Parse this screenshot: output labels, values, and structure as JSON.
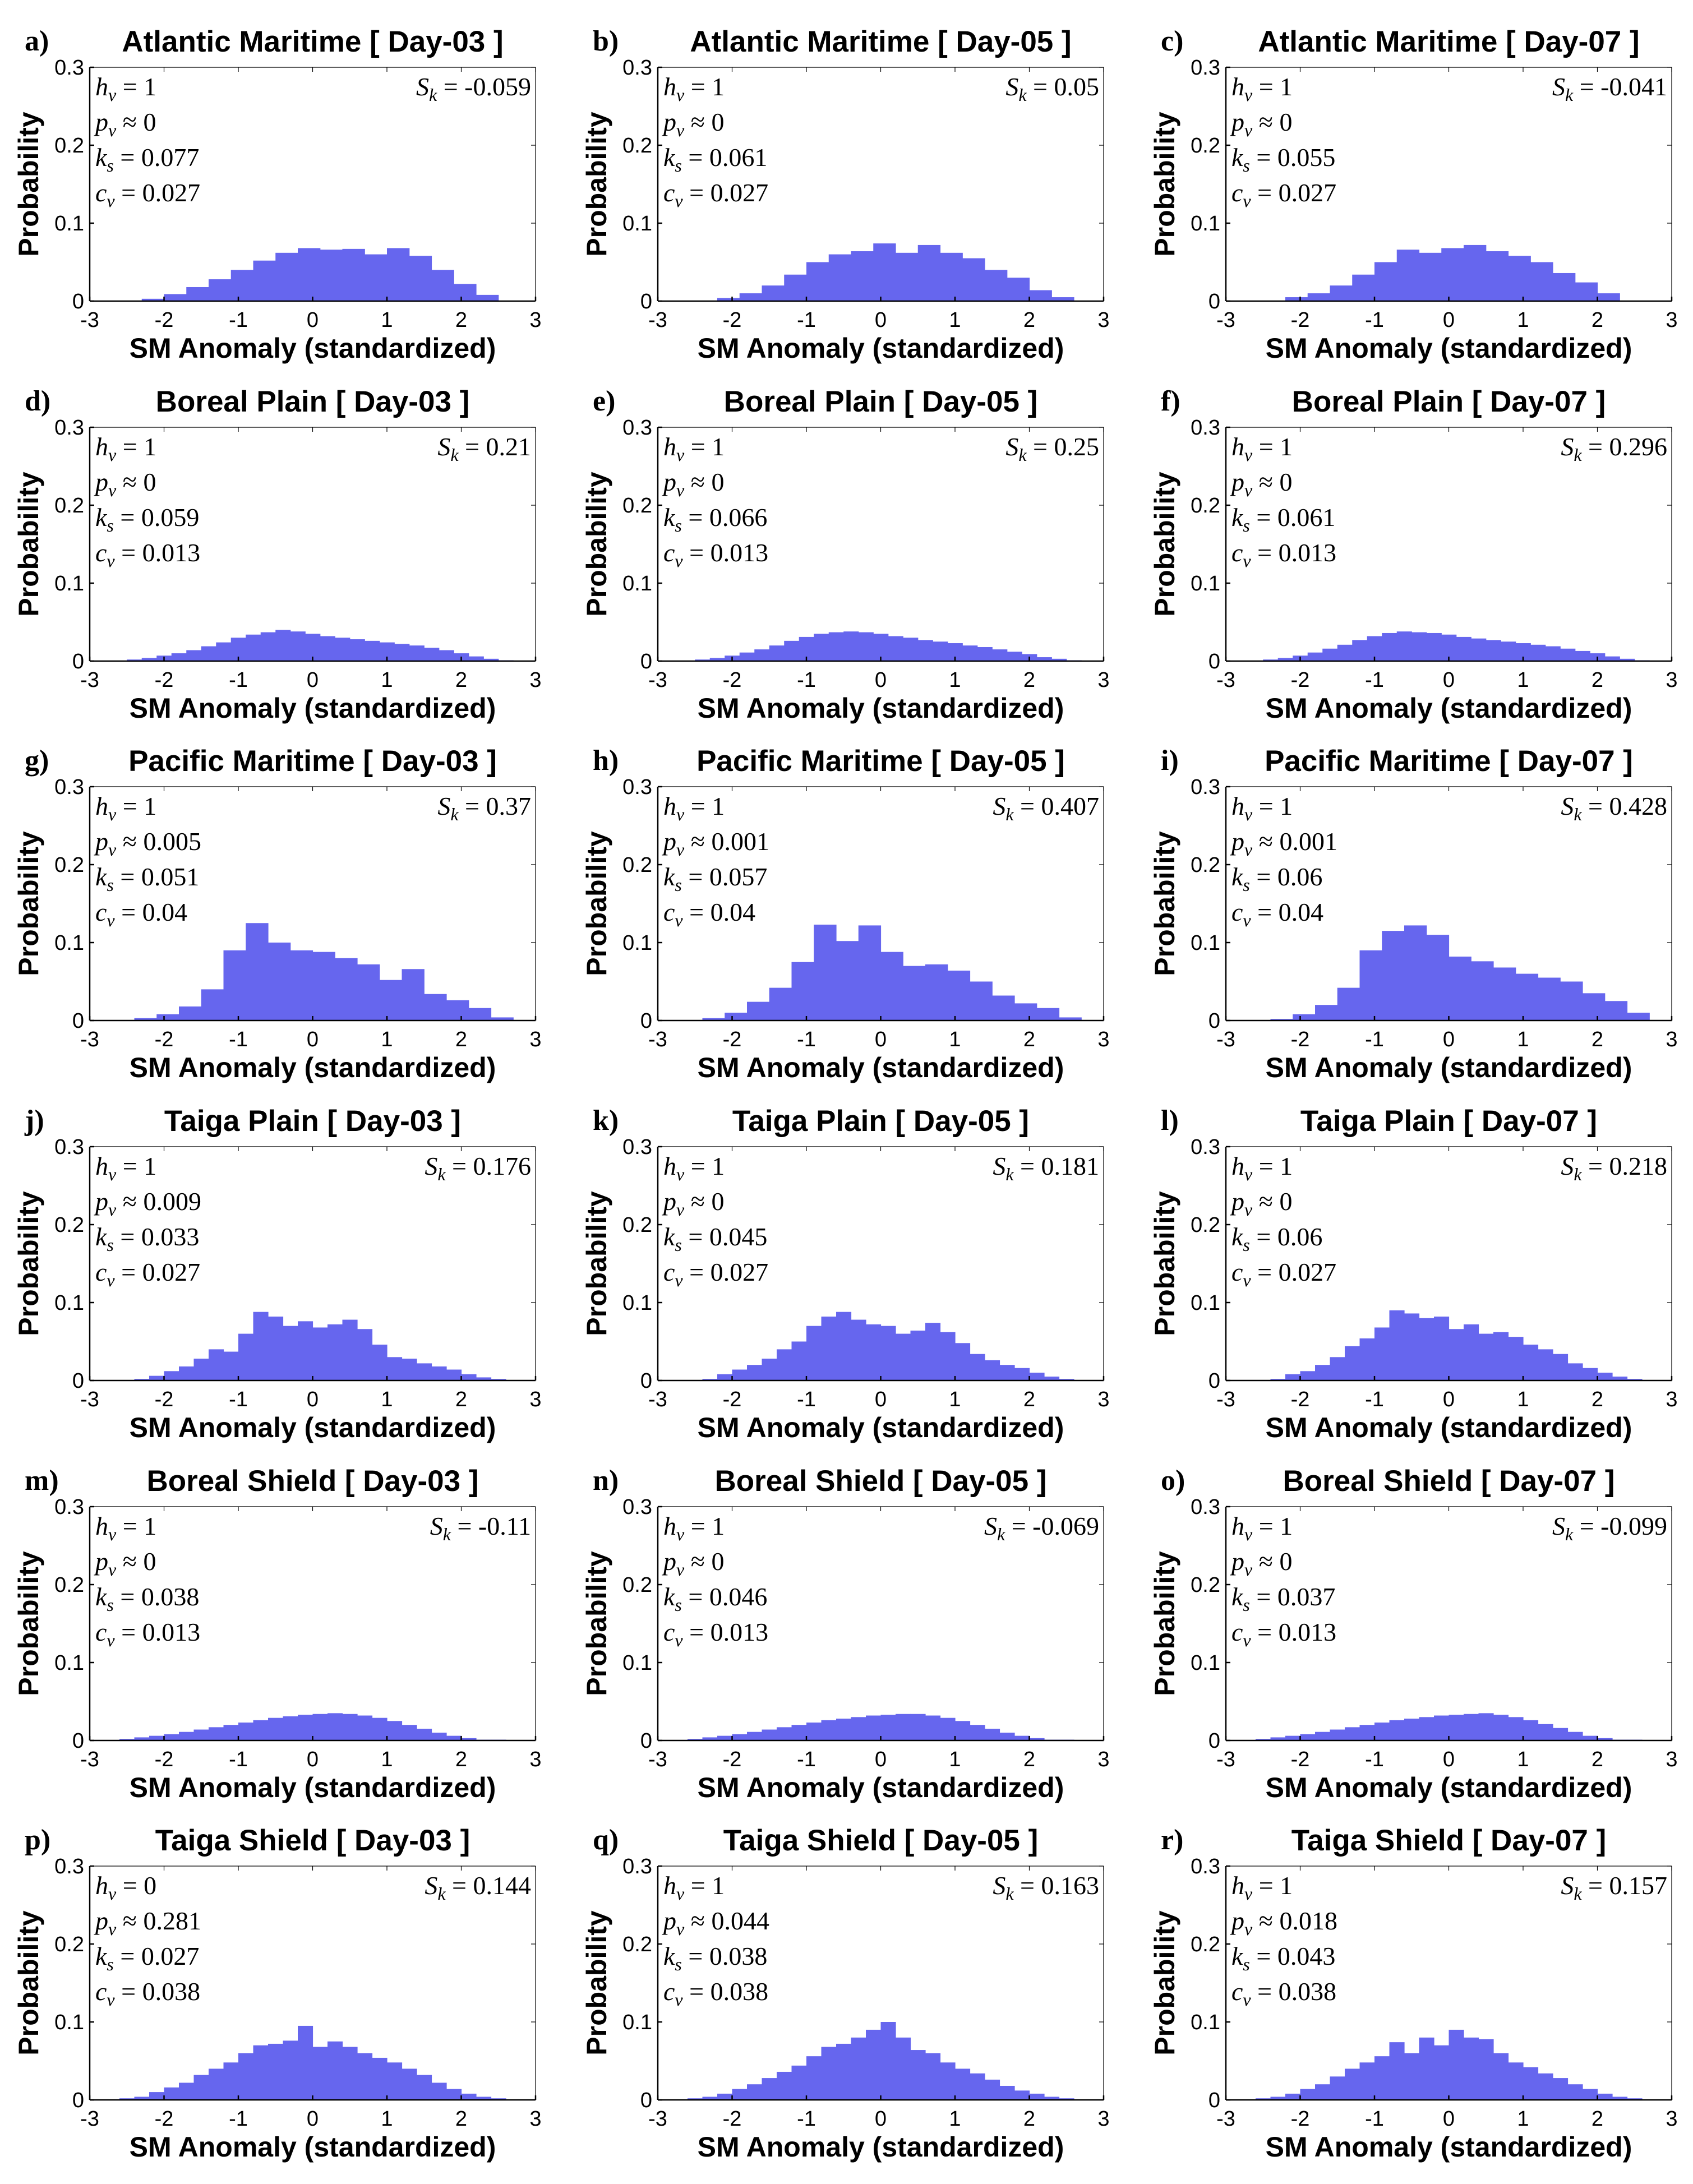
{
  "figure": {
    "xlabel": "SM Anomaly (standardized)",
    "ylabel": "Probability",
    "bar_color": "#6666ee",
    "xticks": [
      "-3",
      "-2",
      "-1",
      "0",
      "1",
      "2",
      "3"
    ],
    "yticks": [
      "0",
      "0.1",
      "0.2",
      "0.3"
    ],
    "stat_labels": {
      "h": "h",
      "h_sub": "v",
      "p": "p",
      "p_sub": "v",
      "k": "k",
      "k_sub": "s",
      "c": "c",
      "c_sub": "v",
      "s": "S",
      "s_sub": "k"
    }
  },
  "chart_data": [
    {
      "letter": "a)",
      "title": "Atlantic Maritime [ Day-03 ]",
      "type": "bar",
      "xlim": [
        -3,
        3
      ],
      "ylim": [
        0,
        0.3
      ],
      "stats": {
        "hv": "= 1",
        "pv": "≈ 0",
        "ks": "= 0.077",
        "cv": "= 0.027",
        "sk": "= -0.059"
      },
      "edges": [
        -2.3,
        -2.0,
        -1.7,
        -1.4,
        -1.1,
        -0.8,
        -0.5,
        -0.2,
        0.1,
        0.4,
        0.7,
        1.0,
        1.3,
        1.6,
        1.9,
        2.2,
        2.5
      ],
      "values": [
        0.003,
        0.009,
        0.018,
        0.028,
        0.04,
        0.052,
        0.062,
        0.068,
        0.066,
        0.067,
        0.06,
        0.068,
        0.058,
        0.04,
        0.022,
        0.008
      ]
    },
    {
      "letter": "b)",
      "title": "Atlantic Maritime [ Day-05 ]",
      "type": "bar",
      "xlim": [
        -3,
        3
      ],
      "ylim": [
        0,
        0.3
      ],
      "stats": {
        "hv": "= 1",
        "pv": "≈ 0",
        "ks": "= 0.061",
        "cv": "= 0.027",
        "sk": "= 0.05"
      },
      "edges": [
        -2.2,
        -1.9,
        -1.6,
        -1.3,
        -1.0,
        -0.7,
        -0.4,
        -0.1,
        0.2,
        0.5,
        0.8,
        1.1,
        1.4,
        1.7,
        2.0,
        2.3,
        2.6
      ],
      "values": [
        0.004,
        0.01,
        0.02,
        0.034,
        0.05,
        0.06,
        0.064,
        0.074,
        0.062,
        0.072,
        0.062,
        0.055,
        0.04,
        0.03,
        0.014,
        0.005
      ]
    },
    {
      "letter": "c)",
      "title": "Atlantic Maritime [ Day-07 ]",
      "type": "bar",
      "xlim": [
        -3,
        3
      ],
      "ylim": [
        0,
        0.3
      ],
      "stats": {
        "hv": "= 1",
        "pv": "≈ 0",
        "ks": "= 0.055",
        "cv": "= 0.027",
        "sk": "= -0.041"
      },
      "edges": [
        -2.2,
        -1.9,
        -1.6,
        -1.3,
        -1.0,
        -0.7,
        -0.4,
        -0.1,
        0.2,
        0.5,
        0.8,
        1.1,
        1.4,
        1.7,
        2.0,
        2.3
      ],
      "values": [
        0.005,
        0.01,
        0.02,
        0.034,
        0.05,
        0.066,
        0.062,
        0.068,
        0.072,
        0.064,
        0.058,
        0.05,
        0.036,
        0.024,
        0.01
      ]
    },
    {
      "letter": "d)",
      "title": "Boreal Plain [ Day-03 ]",
      "type": "bar",
      "xlim": [
        -3,
        3
      ],
      "ylim": [
        0,
        0.3
      ],
      "stats": {
        "hv": "= 1",
        "pv": "≈ 0",
        "ks": "= 0.059",
        "cv": "= 0.013",
        "sk": "= 0.21"
      },
      "edges": [
        -2.5,
        -2.3,
        -2.1,
        -1.9,
        -1.7,
        -1.5,
        -1.3,
        -1.1,
        -0.9,
        -0.7,
        -0.5,
        -0.3,
        -0.1,
        0.1,
        0.3,
        0.5,
        0.7,
        0.9,
        1.1,
        1.3,
        1.5,
        1.7,
        1.9,
        2.1,
        2.3,
        2.5,
        2.7
      ],
      "values": [
        0.002,
        0.004,
        0.007,
        0.01,
        0.014,
        0.019,
        0.024,
        0.03,
        0.034,
        0.037,
        0.04,
        0.038,
        0.035,
        0.032,
        0.03,
        0.028,
        0.026,
        0.024,
        0.022,
        0.02,
        0.017,
        0.014,
        0.01,
        0.006,
        0.003,
        0.001
      ]
    },
    {
      "letter": "e)",
      "title": "Boreal Plain [ Day-05 ]",
      "type": "bar",
      "xlim": [
        -3,
        3
      ],
      "ylim": [
        0,
        0.3
      ],
      "stats": {
        "hv": "= 1",
        "pv": "≈ 0",
        "ks": "= 0.066",
        "cv": "= 0.013",
        "sk": "= 0.25"
      },
      "edges": [
        -2.5,
        -2.3,
        -2.1,
        -1.9,
        -1.7,
        -1.5,
        -1.3,
        -1.1,
        -0.9,
        -0.7,
        -0.5,
        -0.3,
        -0.1,
        0.1,
        0.3,
        0.5,
        0.7,
        0.9,
        1.1,
        1.3,
        1.5,
        1.7,
        1.9,
        2.1,
        2.3,
        2.5,
        2.7
      ],
      "values": [
        0.002,
        0.004,
        0.007,
        0.011,
        0.015,
        0.02,
        0.026,
        0.031,
        0.035,
        0.037,
        0.038,
        0.037,
        0.035,
        0.032,
        0.03,
        0.027,
        0.025,
        0.023,
        0.02,
        0.018,
        0.015,
        0.012,
        0.009,
        0.005,
        0.003,
        0.001
      ]
    },
    {
      "letter": "f)",
      "title": "Boreal Plain [ Day-07 ]",
      "type": "bar",
      "xlim": [
        -3,
        3
      ],
      "ylim": [
        0,
        0.3
      ],
      "stats": {
        "hv": "= 1",
        "pv": "≈ 0",
        "ks": "= 0.061",
        "cv": "= 0.013",
        "sk": "= 0.296"
      },
      "edges": [
        -2.5,
        -2.3,
        -2.1,
        -1.9,
        -1.7,
        -1.5,
        -1.3,
        -1.1,
        -0.9,
        -0.7,
        -0.5,
        -0.3,
        -0.1,
        0.1,
        0.3,
        0.5,
        0.7,
        0.9,
        1.1,
        1.3,
        1.5,
        1.7,
        1.9,
        2.1,
        2.3,
        2.5,
        2.7
      ],
      "values": [
        0.002,
        0.004,
        0.007,
        0.011,
        0.016,
        0.021,
        0.027,
        0.032,
        0.036,
        0.038,
        0.037,
        0.036,
        0.034,
        0.031,
        0.029,
        0.027,
        0.025,
        0.023,
        0.021,
        0.019,
        0.016,
        0.013,
        0.01,
        0.006,
        0.003,
        0.001
      ]
    },
    {
      "letter": "g)",
      "title": "Pacific Maritime [ Day-03 ]",
      "type": "bar",
      "xlim": [
        -3,
        3
      ],
      "ylim": [
        0,
        0.3
      ],
      "stats": {
        "hv": "= 1",
        "pv": "≈ 0.005",
        "ks": "= 0.051",
        "cv": "= 0.04",
        "sk": "= 0.37"
      },
      "edges": [
        -2.4,
        -2.1,
        -1.8,
        -1.5,
        -1.2,
        -0.9,
        -0.6,
        -0.3,
        0.0,
        0.3,
        0.6,
        0.9,
        1.2,
        1.5,
        1.8,
        2.1,
        2.4,
        2.7
      ],
      "values": [
        0.003,
        0.008,
        0.018,
        0.04,
        0.09,
        0.125,
        0.1,
        0.09,
        0.088,
        0.08,
        0.072,
        0.052,
        0.066,
        0.034,
        0.026,
        0.016,
        0.004
      ]
    },
    {
      "letter": "h)",
      "title": "Pacific Maritime [ Day-05 ]",
      "type": "bar",
      "xlim": [
        -3,
        3
      ],
      "ylim": [
        0,
        0.3
      ],
      "stats": {
        "hv": "= 1",
        "pv": "≈ 0.001",
        "ks": "= 0.057",
        "cv": "= 0.04",
        "sk": "= 0.407"
      },
      "edges": [
        -2.4,
        -2.1,
        -1.8,
        -1.5,
        -1.2,
        -0.9,
        -0.6,
        -0.3,
        0.0,
        0.3,
        0.6,
        0.9,
        1.2,
        1.5,
        1.8,
        2.1,
        2.4,
        2.7
      ],
      "values": [
        0.003,
        0.01,
        0.024,
        0.042,
        0.075,
        0.123,
        0.102,
        0.122,
        0.088,
        0.07,
        0.072,
        0.064,
        0.05,
        0.032,
        0.022,
        0.016,
        0.004
      ]
    },
    {
      "letter": "i)",
      "title": "Pacific Maritime [ Day-07 ]",
      "type": "bar",
      "xlim": [
        -3,
        3
      ],
      "ylim": [
        0,
        0.3
      ],
      "stats": {
        "hv": "= 1",
        "pv": "≈ 0.001",
        "ks": "= 0.06",
        "cv": "= 0.04",
        "sk": "= 0.428"
      },
      "edges": [
        -2.4,
        -2.1,
        -1.8,
        -1.5,
        -1.2,
        -0.9,
        -0.6,
        -0.3,
        0.0,
        0.3,
        0.6,
        0.9,
        1.2,
        1.5,
        1.8,
        2.1,
        2.4,
        2.7
      ],
      "values": [
        0.002,
        0.008,
        0.02,
        0.042,
        0.09,
        0.115,
        0.122,
        0.11,
        0.082,
        0.076,
        0.068,
        0.06,
        0.055,
        0.05,
        0.035,
        0.025,
        0.01
      ]
    },
    {
      "letter": "j)",
      "title": "Taiga Plain [ Day-03 ]",
      "type": "bar",
      "xlim": [
        -3,
        3
      ],
      "ylim": [
        0,
        0.3
      ],
      "stats": {
        "hv": "= 1",
        "pv": "≈ 0.009",
        "ks": "= 0.033",
        "cv": "= 0.027",
        "sk": "= 0.176"
      },
      "edges": [
        -2.4,
        -2.2,
        -2.0,
        -1.8,
        -1.6,
        -1.4,
        -1.2,
        -1.0,
        -0.8,
        -0.6,
        -0.4,
        -0.2,
        0.0,
        0.2,
        0.4,
        0.6,
        0.8,
        1.0,
        1.2,
        1.4,
        1.6,
        1.8,
        2.0,
        2.2,
        2.4,
        2.6
      ],
      "values": [
        0.002,
        0.006,
        0.012,
        0.018,
        0.028,
        0.04,
        0.037,
        0.06,
        0.088,
        0.082,
        0.07,
        0.076,
        0.068,
        0.072,
        0.078,
        0.066,
        0.046,
        0.03,
        0.028,
        0.022,
        0.018,
        0.014,
        0.008,
        0.004,
        0.002
      ]
    },
    {
      "letter": "k)",
      "title": "Taiga Plain [ Day-05 ]",
      "type": "bar",
      "xlim": [
        -3,
        3
      ],
      "ylim": [
        0,
        0.3
      ],
      "stats": {
        "hv": "= 1",
        "pv": "≈ 0",
        "ks": "= 0.045",
        "cv": "= 0.027",
        "sk": "= 0.181"
      },
      "edges": [
        -2.4,
        -2.2,
        -2.0,
        -1.8,
        -1.6,
        -1.4,
        -1.2,
        -1.0,
        -0.8,
        -0.6,
        -0.4,
        -0.2,
        0.0,
        0.2,
        0.4,
        0.6,
        0.8,
        1.0,
        1.2,
        1.4,
        1.6,
        1.8,
        2.0,
        2.2,
        2.4,
        2.6
      ],
      "values": [
        0.002,
        0.008,
        0.014,
        0.02,
        0.028,
        0.04,
        0.05,
        0.07,
        0.082,
        0.088,
        0.078,
        0.072,
        0.07,
        0.06,
        0.064,
        0.074,
        0.062,
        0.048,
        0.034,
        0.026,
        0.02,
        0.016,
        0.01,
        0.005,
        0.002
      ]
    },
    {
      "letter": "l)",
      "title": "Taiga Plain [ Day-07 ]",
      "type": "bar",
      "xlim": [
        -3,
        3
      ],
      "ylim": [
        0,
        0.3
      ],
      "stats": {
        "hv": "= 1",
        "pv": "≈ 0",
        "ks": "= 0.06",
        "cv": "= 0.027",
        "sk": "= 0.218"
      },
      "edges": [
        -2.4,
        -2.2,
        -2.0,
        -1.8,
        -1.6,
        -1.4,
        -1.2,
        -1.0,
        -0.8,
        -0.6,
        -0.4,
        -0.2,
        0.0,
        0.2,
        0.4,
        0.6,
        0.8,
        1.0,
        1.2,
        1.4,
        1.6,
        1.8,
        2.0,
        2.2,
        2.4,
        2.6
      ],
      "values": [
        0.002,
        0.008,
        0.012,
        0.02,
        0.03,
        0.044,
        0.054,
        0.068,
        0.09,
        0.086,
        0.08,
        0.082,
        0.066,
        0.072,
        0.06,
        0.062,
        0.056,
        0.046,
        0.04,
        0.034,
        0.022,
        0.016,
        0.01,
        0.005,
        0.002
      ]
    },
    {
      "letter": "m)",
      "title": "Boreal Shield [ Day-03 ]",
      "type": "bar",
      "xlim": [
        -3,
        3
      ],
      "ylim": [
        0,
        0.3
      ],
      "stats": {
        "hv": "= 1",
        "pv": "≈ 0",
        "ks": "= 0.038",
        "cv": "= 0.013",
        "sk": "= -0.11"
      },
      "edges": [
        -2.6,
        -2.4,
        -2.2,
        -2.0,
        -1.8,
        -1.6,
        -1.4,
        -1.2,
        -1.0,
        -0.8,
        -0.6,
        -0.4,
        -0.2,
        0.0,
        0.2,
        0.4,
        0.6,
        0.8,
        1.0,
        1.2,
        1.4,
        1.6,
        1.8,
        2.0,
        2.2,
        2.4,
        2.6
      ],
      "values": [
        0.002,
        0.004,
        0.006,
        0.008,
        0.011,
        0.014,
        0.017,
        0.02,
        0.023,
        0.026,
        0.029,
        0.031,
        0.033,
        0.034,
        0.035,
        0.034,
        0.032,
        0.029,
        0.025,
        0.02,
        0.015,
        0.01,
        0.006,
        0.003,
        0.001,
        0.001
      ]
    },
    {
      "letter": "n)",
      "title": "Boreal Shield [ Day-05 ]",
      "type": "bar",
      "xlim": [
        -3,
        3
      ],
      "ylim": [
        0,
        0.3
      ],
      "stats": {
        "hv": "= 1",
        "pv": "≈ 0",
        "ks": "= 0.046",
        "cv": "= 0.013",
        "sk": "= -0.069"
      },
      "edges": [
        -2.6,
        -2.4,
        -2.2,
        -2.0,
        -1.8,
        -1.6,
        -1.4,
        -1.2,
        -1.0,
        -0.8,
        -0.6,
        -0.4,
        -0.2,
        0.0,
        0.2,
        0.4,
        0.6,
        0.8,
        1.0,
        1.2,
        1.4,
        1.6,
        1.8,
        2.0,
        2.2,
        2.4,
        2.6
      ],
      "values": [
        0.002,
        0.004,
        0.006,
        0.008,
        0.011,
        0.014,
        0.017,
        0.02,
        0.023,
        0.026,
        0.028,
        0.03,
        0.032,
        0.033,
        0.034,
        0.034,
        0.032,
        0.029,
        0.025,
        0.02,
        0.015,
        0.01,
        0.006,
        0.003,
        0.001,
        0.001
      ]
    },
    {
      "letter": "o)",
      "title": "Boreal Shield [ Day-07 ]",
      "type": "bar",
      "xlim": [
        -3,
        3
      ],
      "ylim": [
        0,
        0.3
      ],
      "stats": {
        "hv": "= 1",
        "pv": "≈ 0",
        "ks": "= 0.037",
        "cv": "= 0.013",
        "sk": "= -0.099"
      },
      "edges": [
        -2.6,
        -2.4,
        -2.2,
        -2.0,
        -1.8,
        -1.6,
        -1.4,
        -1.2,
        -1.0,
        -0.8,
        -0.6,
        -0.4,
        -0.2,
        0.0,
        0.2,
        0.4,
        0.6,
        0.8,
        1.0,
        1.2,
        1.4,
        1.6,
        1.8,
        2.0,
        2.2,
        2.4,
        2.6
      ],
      "values": [
        0.002,
        0.004,
        0.006,
        0.008,
        0.011,
        0.014,
        0.017,
        0.02,
        0.023,
        0.026,
        0.028,
        0.03,
        0.032,
        0.033,
        0.034,
        0.035,
        0.033,
        0.03,
        0.026,
        0.021,
        0.016,
        0.011,
        0.006,
        0.003,
        0.001,
        0.001
      ]
    },
    {
      "letter": "p)",
      "title": "Taiga Shield [ Day-03 ]",
      "type": "bar",
      "xlim": [
        -3,
        3
      ],
      "ylim": [
        0,
        0.3
      ],
      "stats": {
        "hv": "= 0",
        "pv": "≈ 0.281",
        "ks": "= 0.027",
        "cv": "= 0.038",
        "sk": "= 0.144"
      },
      "edges": [
        -2.6,
        -2.4,
        -2.2,
        -2.0,
        -1.8,
        -1.6,
        -1.4,
        -1.2,
        -1.0,
        -0.8,
        -0.6,
        -0.4,
        -0.2,
        0.0,
        0.2,
        0.4,
        0.6,
        0.8,
        1.0,
        1.2,
        1.4,
        1.6,
        1.8,
        2.0,
        2.2,
        2.4,
        2.6
      ],
      "values": [
        0.002,
        0.004,
        0.01,
        0.016,
        0.022,
        0.032,
        0.04,
        0.048,
        0.06,
        0.07,
        0.072,
        0.076,
        0.095,
        0.068,
        0.075,
        0.068,
        0.06,
        0.054,
        0.048,
        0.04,
        0.032,
        0.022,
        0.014,
        0.008,
        0.004,
        0.002
      ]
    },
    {
      "letter": "q)",
      "title": "Taiga Shield [ Day-05 ]",
      "type": "bar",
      "xlim": [
        -3,
        3
      ],
      "ylim": [
        0,
        0.3
      ],
      "stats": {
        "hv": "= 1",
        "pv": "≈ 0.044",
        "ks": "= 0.038",
        "cv": "= 0.038",
        "sk": "= 0.163"
      },
      "edges": [
        -2.6,
        -2.4,
        -2.2,
        -2.0,
        -1.8,
        -1.6,
        -1.4,
        -1.2,
        -1.0,
        -0.8,
        -0.6,
        -0.4,
        -0.2,
        0.0,
        0.2,
        0.4,
        0.6,
        0.8,
        1.0,
        1.2,
        1.4,
        1.6,
        1.8,
        2.0,
        2.2,
        2.4,
        2.6
      ],
      "values": [
        0.002,
        0.004,
        0.008,
        0.014,
        0.02,
        0.028,
        0.036,
        0.044,
        0.056,
        0.068,
        0.072,
        0.08,
        0.09,
        0.1,
        0.08,
        0.064,
        0.06,
        0.048,
        0.04,
        0.034,
        0.026,
        0.018,
        0.012,
        0.008,
        0.004,
        0.002
      ]
    },
    {
      "letter": "r)",
      "title": "Taiga Shield [ Day-07 ]",
      "type": "bar",
      "xlim": [
        -3,
        3
      ],
      "ylim": [
        0,
        0.3
      ],
      "stats": {
        "hv": "= 1",
        "pv": "≈ 0.018",
        "ks": "= 0.043",
        "cv": "= 0.038",
        "sk": "= 0.157"
      },
      "edges": [
        -2.6,
        -2.4,
        -2.2,
        -2.0,
        -1.8,
        -1.6,
        -1.4,
        -1.2,
        -1.0,
        -0.8,
        -0.6,
        -0.4,
        -0.2,
        0.0,
        0.2,
        0.4,
        0.6,
        0.8,
        1.0,
        1.2,
        1.4,
        1.6,
        1.8,
        2.0,
        2.2,
        2.4,
        2.6
      ],
      "values": [
        0.002,
        0.004,
        0.008,
        0.014,
        0.02,
        0.03,
        0.04,
        0.048,
        0.056,
        0.074,
        0.06,
        0.08,
        0.07,
        0.09,
        0.08,
        0.078,
        0.06,
        0.048,
        0.042,
        0.034,
        0.028,
        0.02,
        0.014,
        0.008,
        0.004,
        0.002
      ]
    }
  ]
}
